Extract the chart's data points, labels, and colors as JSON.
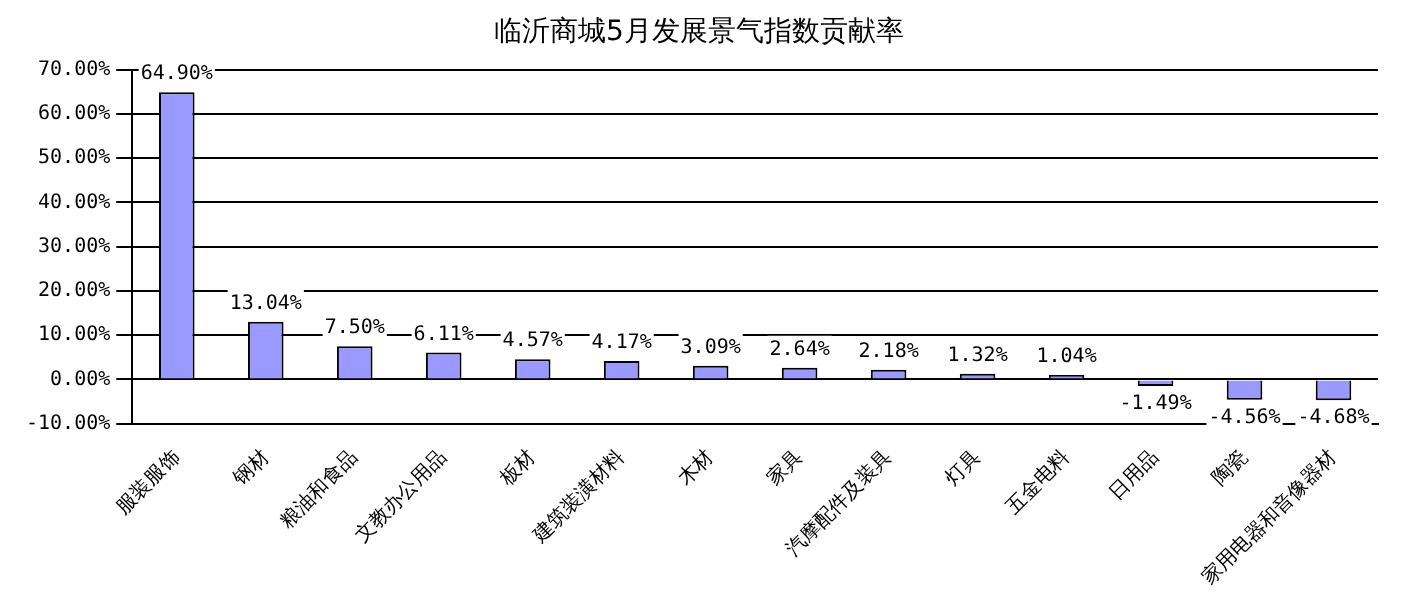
{
  "chart_data": {
    "type": "bar",
    "title": "临沂商城5月发展景气指数贡献率",
    "categories": [
      "服装服饰",
      "钢材",
      "粮油和食品",
      "文教办公用品",
      "板材",
      "建筑装潢材料",
      "木材",
      "家具",
      "汽摩配件及装具",
      "灯具",
      "五金电料",
      "日用品",
      "陶瓷",
      "家用电器和音像器材"
    ],
    "values": [
      64.9,
      13.04,
      7.5,
      6.11,
      4.57,
      4.17,
      3.09,
      2.64,
      2.18,
      1.32,
      1.04,
      -1.49,
      -4.56,
      -4.68
    ],
    "value_labels": [
      "64.90%",
      "13.04%",
      "7.50%",
      "6.11%",
      "4.57%",
      "4.17%",
      "3.09%",
      "2.64%",
      "2.18%",
      "1.32%",
      "1.04%",
      "-1.49%",
      "-4.56%",
      "-4.68%"
    ],
    "color": "#9999ff",
    "ylim": [
      -10,
      70
    ],
    "yticks": [
      {
        "value": -10,
        "label": "-10.00%"
      },
      {
        "value": 0,
        "label": "0.00%"
      },
      {
        "value": 10,
        "label": "10.00%"
      },
      {
        "value": 20,
        "label": "20.00%"
      },
      {
        "value": 30,
        "label": "30.00%"
      },
      {
        "value": 40,
        "label": "40.00%"
      },
      {
        "value": 50,
        "label": "50.00%"
      },
      {
        "value": 60,
        "label": "60.00%"
      },
      {
        "value": 70,
        "label": "70.00%"
      }
    ],
    "grid": "y"
  }
}
